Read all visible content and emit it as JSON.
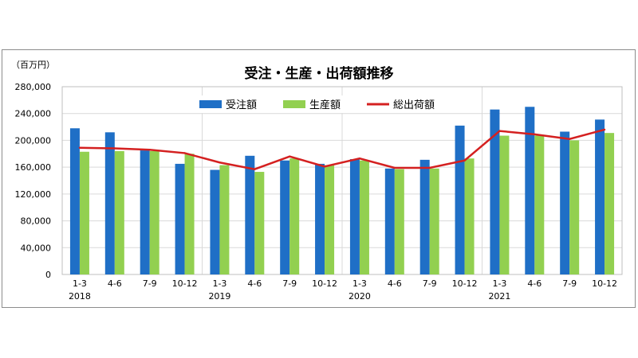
{
  "chart_data": {
    "type": "bar",
    "title": "受注・生産・出荷額推移",
    "unit_label": "（百万円）",
    "categories": [
      "1-3",
      "4-6",
      "7-9",
      "10-12",
      "1-3",
      "4-6",
      "7-9",
      "10-12",
      "1-3",
      "4-6",
      "7-9",
      "10-12",
      "1-3",
      "4-6",
      "7-9",
      "10-12"
    ],
    "years": [
      "2018",
      "2019",
      "2020",
      "2021"
    ],
    "ylim": [
      0,
      280000
    ],
    "yticks": [
      "0",
      "40,000",
      "80,000",
      "120,000",
      "160,000",
      "200,000",
      "240,000",
      "280,000"
    ],
    "grid": true,
    "legend_position": "top",
    "series": [
      {
        "name": "受注額",
        "type": "bar",
        "color": "#1f6fc6",
        "values": [
          218000,
          212000,
          185000,
          165000,
          156000,
          177000,
          170000,
          165000,
          172000,
          158000,
          171000,
          222000,
          246000,
          250000,
          213000,
          231000
        ]
      },
      {
        "name": "生産額",
        "type": "bar",
        "color": "#92d050",
        "values": [
          183000,
          184000,
          184000,
          180000,
          163000,
          153000,
          173000,
          163000,
          170000,
          157000,
          158000,
          173000,
          207000,
          207000,
          200000,
          211000
        ]
      },
      {
        "name": "総出荷額",
        "type": "line",
        "color": "#d42020",
        "values": [
          189000,
          188000,
          186000,
          181000,
          167000,
          157000,
          176000,
          161000,
          173000,
          159000,
          159000,
          170000,
          214000,
          209000,
          202000,
          216000
        ]
      }
    ]
  }
}
